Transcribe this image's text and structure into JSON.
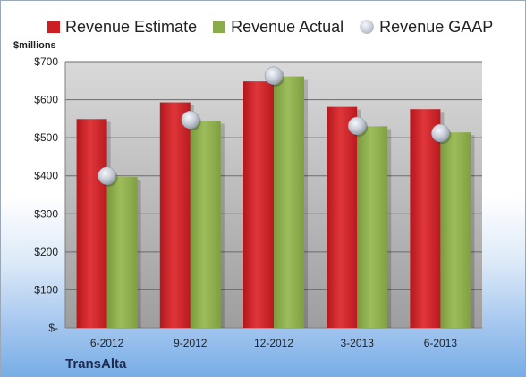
{
  "legend": {
    "estimate": "Revenue Estimate",
    "actual": "Revenue Actual",
    "gaap": "Revenue GAAP"
  },
  "unit_label": "$millions",
  "brand": "TransAlta",
  "colors": {
    "estimate": "#cc1f24",
    "actual": "#8aab4a",
    "gaap": "#c9ced8"
  },
  "chart_data": {
    "type": "bar",
    "categories": [
      "6-2012",
      "9-2012",
      "12-2012",
      "3-2013",
      "6-2013"
    ],
    "series": [
      {
        "name": "Revenue Estimate",
        "values": [
          549,
          593,
          648,
          581,
          575
        ]
      },
      {
        "name": "Revenue Actual",
        "values": [
          397,
          544,
          661,
          530,
          514
        ]
      },
      {
        "name": "Revenue GAAP",
        "values": [
          400,
          547,
          663,
          531,
          512
        ]
      }
    ],
    "ylabel": "$millions",
    "ylim": [
      0,
      700
    ],
    "yticks": [
      "$-",
      "$100",
      "$200",
      "$300",
      "$400",
      "$500",
      "$600",
      "$700"
    ],
    "grid": true,
    "legend_position": "top"
  }
}
